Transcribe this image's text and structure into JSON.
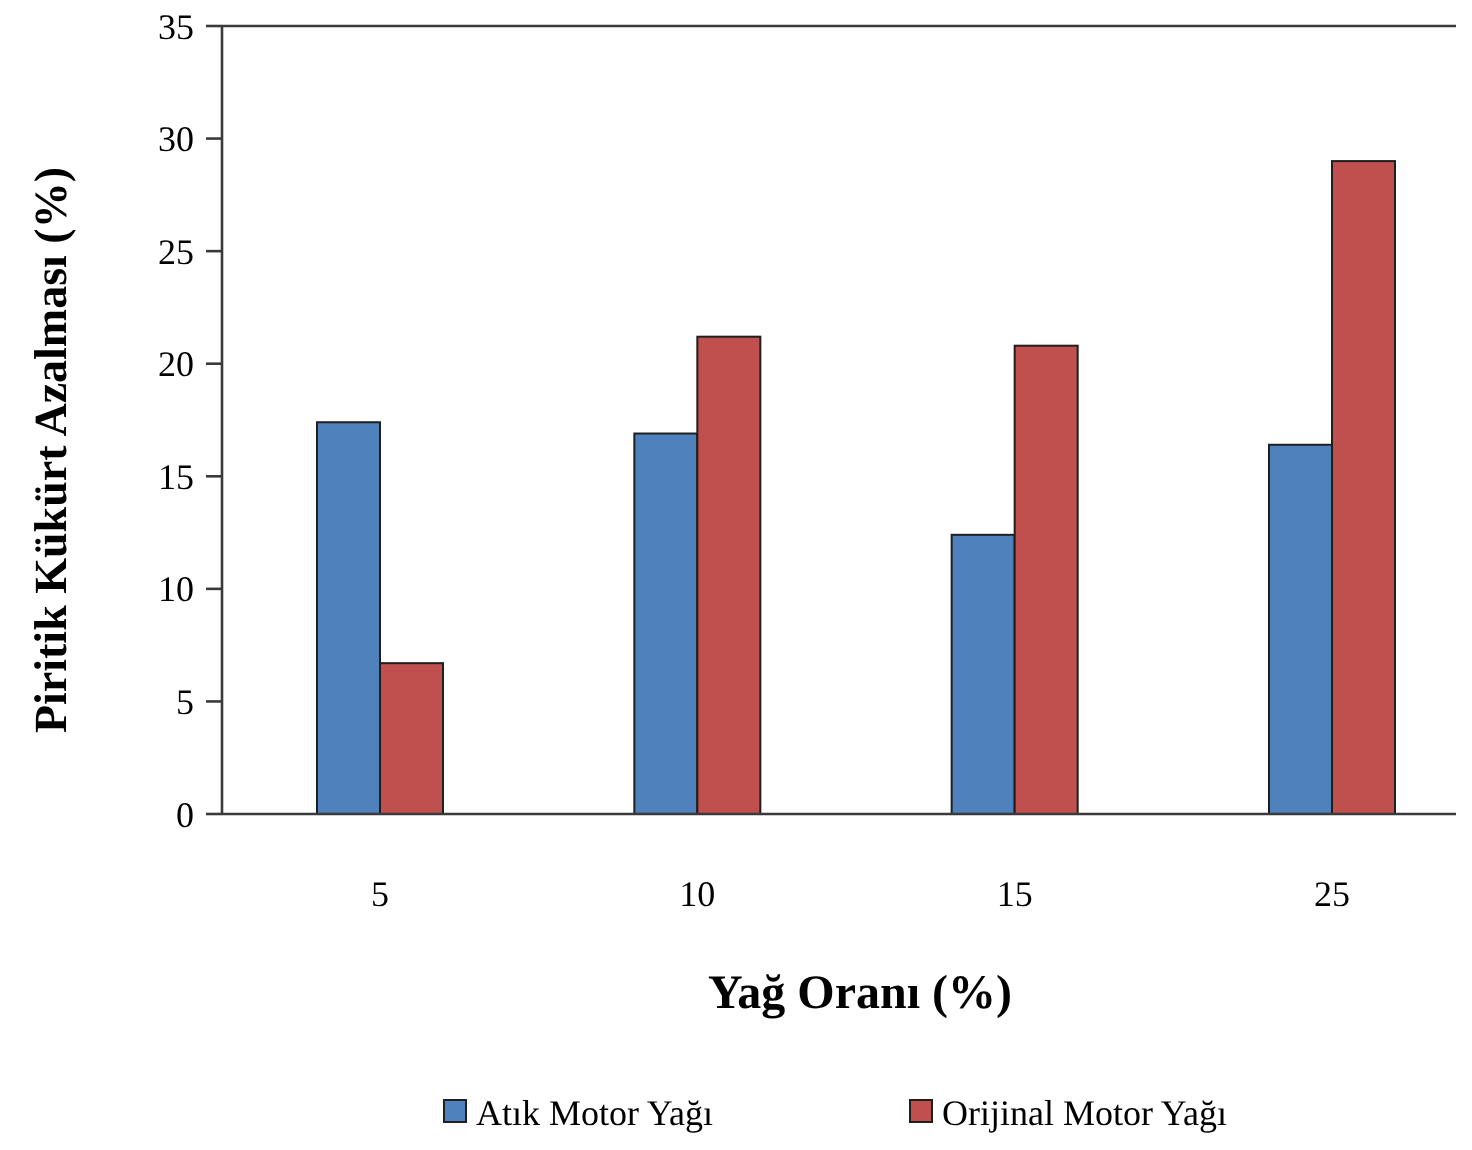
{
  "chart_data": {
    "type": "bar",
    "xlabel": "Yağ Oranı (%)",
    "ylabel": "Piritik Kükürt Azalması (%)",
    "categories": [
      "5",
      "10",
      "15",
      "25"
    ],
    "series": [
      {
        "name": "Atık Motor Yağı",
        "color": "#4f81bd",
        "values": [
          17.4,
          16.9,
          12.4,
          16.4
        ]
      },
      {
        "name": "Orijinal Motor Yağı",
        "color": "#c0504d",
        "values": [
          6.7,
          21.2,
          20.8,
          29.0
        ]
      }
    ],
    "ylim": [
      0,
      35
    ],
    "yticks": [
      0,
      5,
      10,
      15,
      20,
      25,
      30,
      35
    ],
    "legend": "bottom"
  }
}
